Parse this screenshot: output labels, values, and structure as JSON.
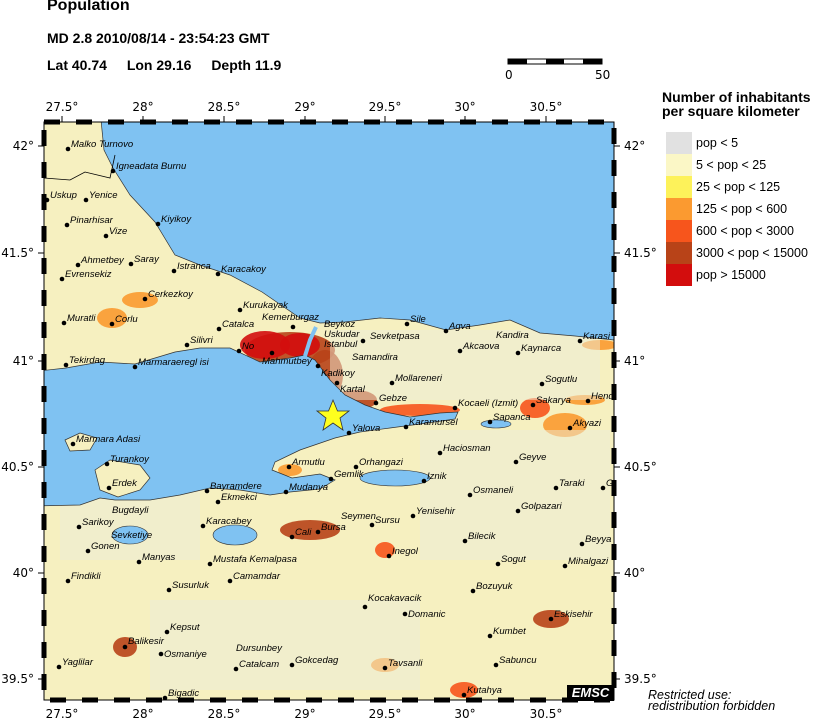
{
  "header": {
    "title": "Population",
    "event": "MD 2.8  2010/08/14 - 23:54:23 GMT",
    "lat": "Lat 40.74",
    "lon": "Lon  29.16",
    "depth": "Depth  11.9"
  },
  "scale_bar": {
    "start_label": "0",
    "end_label": "50"
  },
  "axes": {
    "lon_ticks": [
      "27.5°",
      "28°",
      "28.5°",
      "29°",
      "29.5°",
      "30°",
      "30.5°"
    ],
    "lat_ticks": [
      "42°",
      "41.5°",
      "41°",
      "40.5°",
      "40°",
      "39.5°"
    ]
  },
  "legend": {
    "title_line1": "Number of inhabitants",
    "title_line2": "per square kilometer",
    "items": [
      {
        "label": "pop < 5",
        "color": "#e1e1e1"
      },
      {
        "label": "5 < pop < 25",
        "color": "#fbf7c6"
      },
      {
        "label": "25 < pop < 125",
        "color": "#fdf25a"
      },
      {
        "label": "125 < pop < 600",
        "color": "#fb9a30"
      },
      {
        "label": "600 < pop < 3000",
        "color": "#f7551c"
      },
      {
        "label": "3000 < pop < 15000",
        "color": "#b84318"
      },
      {
        "label": "pop > 15000",
        "color": "#d30d0d"
      }
    ]
  },
  "colors": {
    "sea": "#7fc2f2",
    "land": "#fdf3a0",
    "epicenter": "#ffff1e"
  },
  "epicenter_icon": "star-icon",
  "cities": [
    "Malko Turnovo",
    "Igneadata Burnu",
    "Uskup",
    "Yenice",
    "Pinarhisar",
    "Vize",
    "Kiyikoy",
    "Ahmetbey",
    "Saray",
    "Istranca",
    "Karacakoy",
    "Evrensekiz",
    "Cerkezkoy",
    "Kurukayak",
    "Muratli",
    "Corlu",
    "Catalca",
    "Kemerburgaz",
    "Beykoz",
    "Uskudar",
    "Istanbul",
    "Silivri",
    "No",
    "Mahmutbey",
    "Tekirdag",
    "Marmaraeregl isi",
    "Kadikoy",
    "Sevketpasa",
    "Sile",
    "Agva",
    "Samandira",
    "Kandira",
    "Akcaova",
    "Kaynarca",
    "Karasi",
    "Kartal",
    "Mollareneri",
    "Sogutlu",
    "Gebze",
    "Kocaeli (Izmit)",
    "Sakarya",
    "Hend",
    "Karamursel",
    "Sapanca",
    "Yalova",
    "Akyazi",
    "Marmara Adasi",
    "Haciosman",
    "Turankoy",
    "Armutlu",
    "Orhangazi",
    "Gemlik",
    "Iznik",
    "Geyve",
    "Erdek",
    "Mudanya",
    "Bayramdere",
    "Ekmekci",
    "Osmaneli",
    "Taraki",
    "Go",
    "Golpazari",
    "Yenisehir",
    "Sarikoy",
    "Bugdayli",
    "Karacabey",
    "Seymen",
    "Sursu",
    "Cali",
    "Bursa",
    "Gonen",
    "Sevketiye",
    "Manyas",
    "Bilecik",
    "Inegol",
    "Beyya",
    "Sogut",
    "Mihalgazi",
    "Mustafa Kemalpasa",
    "Findikli",
    "Susurluk",
    "Camamdar",
    "Bozuyuk",
    "Kocakavacik",
    "Domanic",
    "Eskisehir",
    "Kepsut",
    "Balikesir",
    "Osmaniye",
    "Kumbet",
    "Yaglilar",
    "Dursunbey",
    "Catalcam",
    "Gokcedag",
    "Tavsanli",
    "Sabuncu",
    "Bigadic",
    "Kutahya"
  ],
  "logo": "EMSC",
  "notice_line1": "Restricted use:",
  "notice_line2": "redistribution forbidden"
}
